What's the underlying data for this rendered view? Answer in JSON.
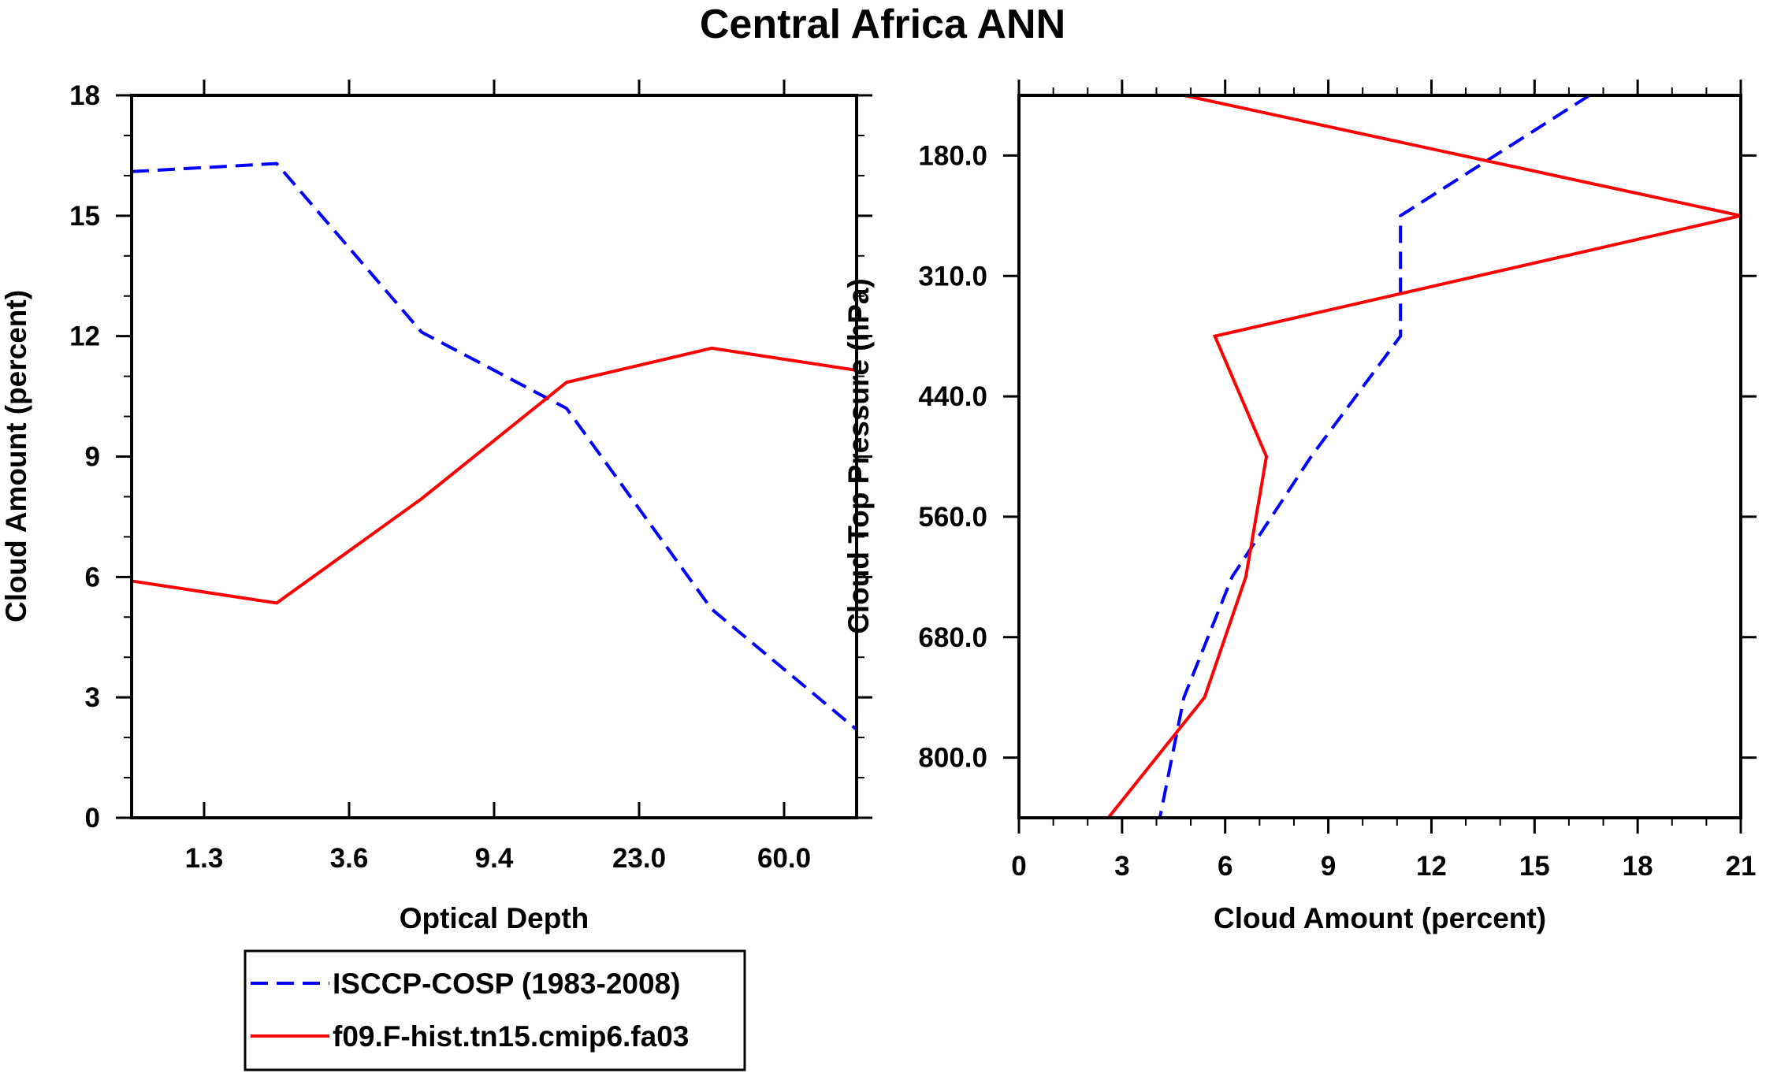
{
  "title": "Central Africa ANN",
  "legend": [
    {
      "label": "ISCCP-COSP (1983-2008)",
      "color": "#0000ff",
      "dash": "dashed"
    },
    {
      "label": "f09.F-hist.tn15.cmip6.fa03",
      "color": "#ff0000",
      "dash": "solid"
    }
  ],
  "chart_data": [
    {
      "type": "line",
      "title": "",
      "xlabel": "Optical Depth",
      "ylabel": "Cloud Amount (percent)",
      "x_ticklabels": [
        "1.3",
        "3.6",
        "9.4",
        "23.0",
        "60.0"
      ],
      "y_ticks": [
        "0",
        "3",
        "6",
        "9",
        "12",
        "15",
        "18"
      ],
      "ylim": [
        0,
        18
      ],
      "x_index_range": [
        0,
        5
      ],
      "x": [
        0,
        1,
        2,
        3,
        4,
        5
      ],
      "series": [
        {
          "name": "ISCCP-COSP (1983-2008)",
          "values": [
            16.1,
            16.3,
            12.1,
            10.2,
            5.2,
            2.2
          ]
        },
        {
          "name": "f09.F-hist.tn15.cmip6.fa03",
          "values": [
            5.9,
            5.35,
            7.95,
            10.85,
            11.7,
            11.15
          ]
        }
      ]
    },
    {
      "type": "line",
      "title": "",
      "xlabel": "Cloud Amount (percent)",
      "ylabel": "Cloud Top Pressure (hPa)",
      "x_ticks": [
        "0",
        "3",
        "6",
        "9",
        "12",
        "15",
        "18",
        "21"
      ],
      "xlim": [
        0,
        21
      ],
      "y_ticklabels": [
        "180.0",
        "310.0",
        "440.0",
        "560.0",
        "680.0",
        "800.0"
      ],
      "y_level_range": [
        0,
        6
      ],
      "y_levels": [
        0,
        1,
        2,
        3,
        4,
        5,
        6
      ],
      "series": [
        {
          "name": "ISCCP-COSP (1983-2008)",
          "values": [
            16.6,
            11.1,
            11.1,
            8.5,
            6.2,
            4.8,
            4.1
          ]
        },
        {
          "name": "f09.F-hist.tn15.cmip6.fa03",
          "values": [
            4.8,
            21.0,
            5.7,
            7.2,
            6.6,
            5.4,
            2.6
          ]
        }
      ]
    }
  ]
}
